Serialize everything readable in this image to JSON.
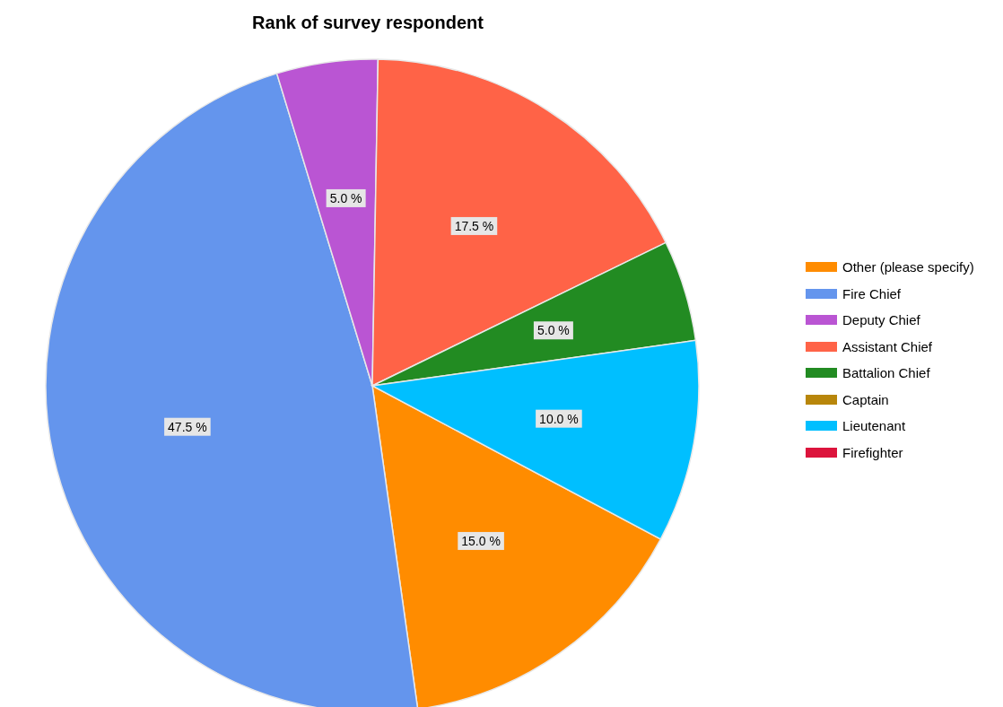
{
  "chart_data": {
    "type": "pie",
    "title": "Rank of survey respondent",
    "categories": [
      "Other (please specify)",
      "Fire Chief",
      "Deputy Chief",
      "Assistant Chief",
      "Battalion Chief",
      "Captain",
      "Lieutenant",
      "Firefighter"
    ],
    "values": [
      15,
      47.5,
      5,
      17.5,
      5,
      0,
      10,
      0
    ],
    "value_labels": [
      "15.0 %",
      "47.5 %",
      "5.0 %",
      "17.5 %",
      "5.0 %",
      null,
      "10.0 %",
      null
    ],
    "colors": [
      "#ff8c00",
      "#6495ed",
      "#ba55d3",
      "#ff6347",
      "#228b22",
      "#b8860b",
      "#00bfff",
      "#dc143c"
    ],
    "legend": "right"
  }
}
